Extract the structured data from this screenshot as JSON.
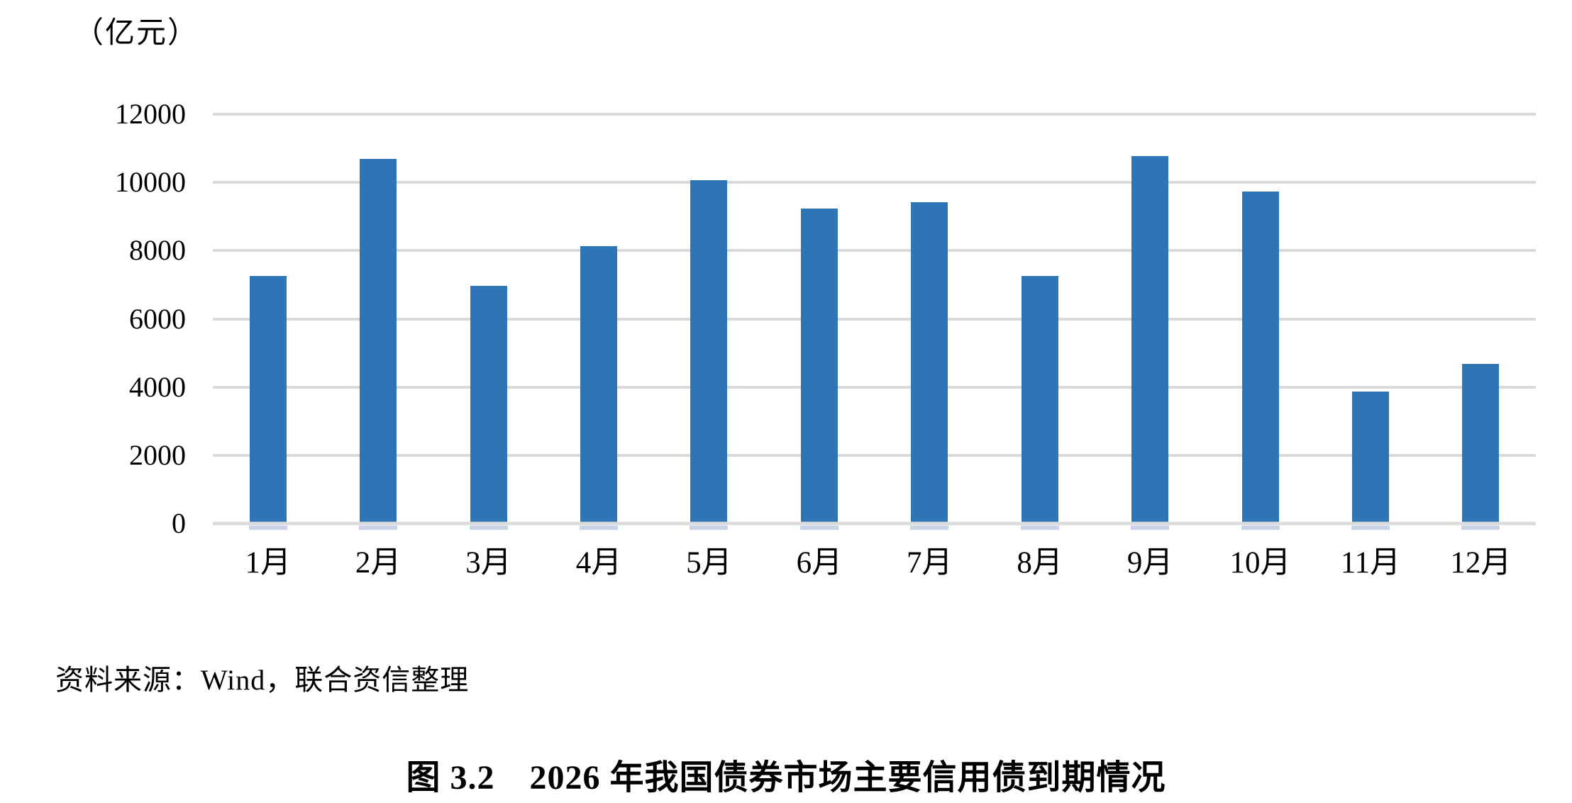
{
  "chart_data": {
    "type": "bar",
    "title": "图 3.2　2026 年我国债券市场主要信用债到期情况",
    "unit_label": "（亿元）",
    "source_note": "资料来源：Wind，联合资信整理",
    "categories": [
      "1月",
      "2月",
      "3月",
      "4月",
      "5月",
      "6月",
      "7月",
      "8月",
      "9月",
      "10月",
      "11月",
      "12月"
    ],
    "values": [
      7260,
      10680,
      6970,
      8130,
      10070,
      9240,
      9430,
      7260,
      10780,
      9730,
      3870,
      4680
    ],
    "xlabel": "",
    "ylabel": "（亿元）",
    "ylim": [
      0,
      12000
    ],
    "yticks": [
      0,
      2000,
      4000,
      6000,
      8000,
      10000,
      12000
    ],
    "grid": true,
    "legend_position": "none",
    "bar_color": "#2E75B6",
    "gridline_color": "#D9D9D9",
    "background_color": "#FFFFFF"
  }
}
